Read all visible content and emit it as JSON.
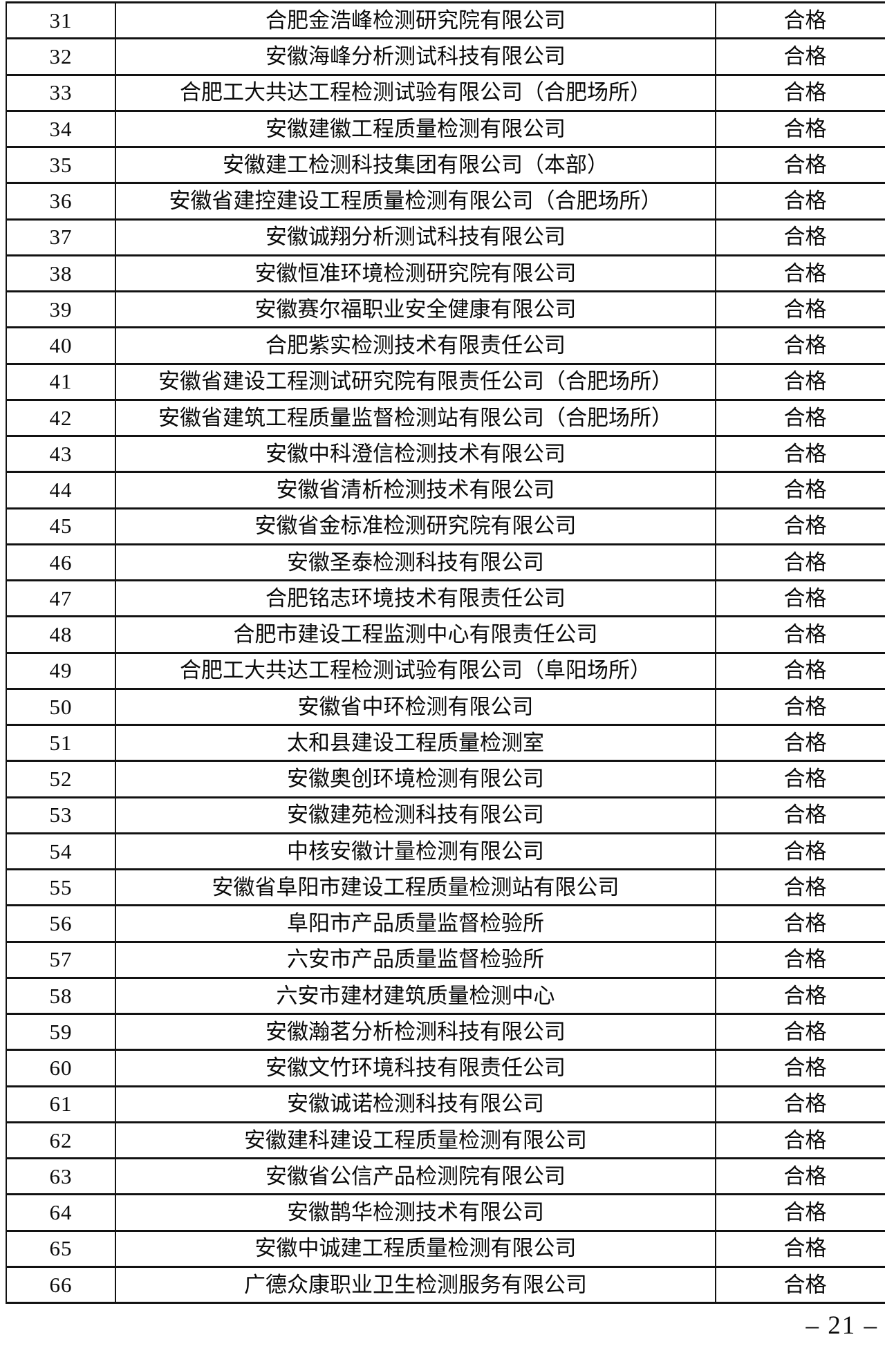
{
  "table": {
    "rows": [
      {
        "no": "31",
        "company": "合肥金浩峰检测研究院有限公司",
        "result": "合格"
      },
      {
        "no": "32",
        "company": "安徽海峰分析测试科技有限公司",
        "result": "合格"
      },
      {
        "no": "33",
        "company": "合肥工大共达工程检测试验有限公司（合肥场所）",
        "result": "合格"
      },
      {
        "no": "34",
        "company": "安徽建徽工程质量检测有限公司",
        "result": "合格"
      },
      {
        "no": "35",
        "company": "安徽建工检测科技集团有限公司（本部）",
        "result": "合格"
      },
      {
        "no": "36",
        "company": "安徽省建控建设工程质量检测有限公司（合肥场所）",
        "result": "合格"
      },
      {
        "no": "37",
        "company": "安徽诚翔分析测试科技有限公司",
        "result": "合格"
      },
      {
        "no": "38",
        "company": "安徽恒准环境检测研究院有限公司",
        "result": "合格"
      },
      {
        "no": "39",
        "company": "安徽赛尔福职业安全健康有限公司",
        "result": "合格"
      },
      {
        "no": "40",
        "company": "合肥紫实检测技术有限责任公司",
        "result": "合格"
      },
      {
        "no": "41",
        "company": "安徽省建设工程测试研究院有限责任公司（合肥场所）",
        "result": "合格"
      },
      {
        "no": "42",
        "company": "安徽省建筑工程质量监督检测站有限公司（合肥场所）",
        "result": "合格"
      },
      {
        "no": "43",
        "company": "安徽中科澄信检测技术有限公司",
        "result": "合格"
      },
      {
        "no": "44",
        "company": "安徽省清析检测技术有限公司",
        "result": "合格"
      },
      {
        "no": "45",
        "company": "安徽省金标准检测研究院有限公司",
        "result": "合格"
      },
      {
        "no": "46",
        "company": "安徽圣泰检测科技有限公司",
        "result": "合格"
      },
      {
        "no": "47",
        "company": "合肥铭志环境技术有限责任公司",
        "result": "合格"
      },
      {
        "no": "48",
        "company": "合肥市建设工程监测中心有限责任公司",
        "result": "合格"
      },
      {
        "no": "49",
        "company": "合肥工大共达工程检测试验有限公司（阜阳场所）",
        "result": "合格"
      },
      {
        "no": "50",
        "company": "安徽省中环检测有限公司",
        "result": "合格"
      },
      {
        "no": "51",
        "company": "太和县建设工程质量检测室",
        "result": "合格"
      },
      {
        "no": "52",
        "company": "安徽奥创环境检测有限公司",
        "result": "合格"
      },
      {
        "no": "53",
        "company": "安徽建苑检测科技有限公司",
        "result": "合格"
      },
      {
        "no": "54",
        "company": "中核安徽计量检测有限公司",
        "result": "合格"
      },
      {
        "no": "55",
        "company": "安徽省阜阳市建设工程质量检测站有限公司",
        "result": "合格"
      },
      {
        "no": "56",
        "company": "阜阳市产品质量监督检验所",
        "result": "合格"
      },
      {
        "no": "57",
        "company": "六安市产品质量监督检验所",
        "result": "合格"
      },
      {
        "no": "58",
        "company": "六安市建材建筑质量检测中心",
        "result": "合格"
      },
      {
        "no": "59",
        "company": "安徽瀚茗分析检测科技有限公司",
        "result": "合格"
      },
      {
        "no": "60",
        "company": "安徽文竹环境科技有限责任公司",
        "result": "合格"
      },
      {
        "no": "61",
        "company": "安徽诚诺检测科技有限公司",
        "result": "合格"
      },
      {
        "no": "62",
        "company": "安徽建科建设工程质量检测有限公司",
        "result": "合格"
      },
      {
        "no": "63",
        "company": "安徽省公信产品检测院有限公司",
        "result": "合格"
      },
      {
        "no": "64",
        "company": "安徽鹊华检测技术有限公司",
        "result": "合格"
      },
      {
        "no": "65",
        "company": "安徽中诚建工程质量检测有限公司",
        "result": "合格"
      },
      {
        "no": "66",
        "company": "广德众康职业卫生检测服务有限公司",
        "result": "合格"
      }
    ]
  },
  "footer": {
    "page_number": "– 21 –"
  }
}
